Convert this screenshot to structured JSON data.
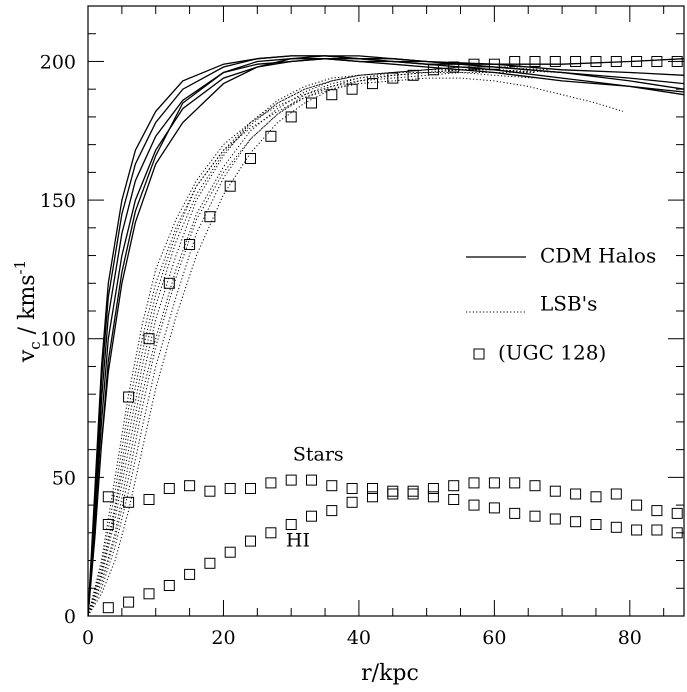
{
  "chart_data": {
    "type": "line",
    "title": "",
    "xlabel": "r/kpc",
    "ylabel_main": "v",
    "ylabel_sub": "c",
    "ylabel_rest": " / kms",
    "ylabel_sup": "-1",
    "xlim": [
      0,
      88
    ],
    "ylim": [
      0,
      220
    ],
    "xticks": [
      0,
      20,
      40,
      60,
      80
    ],
    "yticks": [
      0,
      50,
      100,
      150,
      200
    ],
    "xtick_labels": [
      "0",
      "20",
      "40",
      "60",
      "80"
    ],
    "ytick_labels": [
      "0",
      "50",
      "100",
      "150",
      "200"
    ],
    "grid": false,
    "legend_position": "right",
    "legend": [
      {
        "label": "CDM Halos",
        "style": "solid"
      },
      {
        "label": "LSB's",
        "style": "dotted"
      },
      {
        "label": "(UGC 128)",
        "style": "square-marker"
      }
    ],
    "annotations": [
      {
        "text": "Stars",
        "x": 34,
        "y": 56
      },
      {
        "text": "HI",
        "x": 31,
        "y": 25
      }
    ],
    "cdm_halos": [
      {
        "x": [
          0,
          1,
          2,
          3,
          5,
          7,
          10,
          14,
          20,
          25,
          30,
          35,
          40,
          45,
          50,
          60,
          70,
          80,
          88
        ],
        "y": [
          0,
          45,
          90,
          120,
          150,
          168,
          182,
          193,
          199,
          201,
          202,
          202,
          201,
          201,
          200,
          198,
          196,
          194,
          192
        ]
      },
      {
        "x": [
          0,
          1,
          2,
          3,
          5,
          7,
          10,
          14,
          20,
          25,
          30,
          35,
          40,
          45,
          50,
          60,
          70,
          80,
          88
        ],
        "y": [
          0,
          40,
          85,
          115,
          145,
          163,
          178,
          190,
          198,
          201,
          202,
          202,
          202,
          201,
          200,
          199,
          197,
          196,
          195
        ]
      },
      {
        "x": [
          0,
          1,
          2,
          3,
          5,
          7,
          10,
          14,
          20,
          25,
          30,
          35,
          40,
          45,
          50,
          60,
          70,
          80,
          88
        ],
        "y": [
          0,
          35,
          78,
          108,
          138,
          157,
          173,
          186,
          196,
          200,
          201,
          202,
          201,
          200,
          199,
          197,
          194,
          191,
          188
        ]
      },
      {
        "x": [
          0,
          1,
          2,
          3,
          5,
          7,
          10,
          14,
          20,
          25,
          30,
          35,
          40,
          45,
          50,
          60,
          70,
          80,
          88
        ],
        "y": [
          0,
          32,
          70,
          100,
          130,
          150,
          168,
          183,
          194,
          198,
          200,
          201,
          201,
          200,
          200,
          198,
          196,
          193,
          190
        ]
      },
      {
        "x": [
          2,
          3,
          5,
          7,
          10,
          14,
          20,
          25,
          30,
          35,
          40,
          45,
          50,
          60,
          70,
          80,
          88
        ],
        "y": [
          62,
          88,
          120,
          142,
          163,
          178,
          192,
          198,
          201,
          201,
          200,
          199,
          198,
          196,
          193,
          191,
          189
        ]
      },
      {
        "x": [
          0,
          1,
          2,
          3,
          5,
          7,
          10,
          14,
          20,
          25,
          30,
          35,
          40,
          45,
          50,
          60,
          70,
          80,
          88
        ],
        "y": [
          0,
          28,
          62,
          92,
          124,
          146,
          166,
          185,
          196,
          199,
          200,
          201,
          200,
          200,
          199,
          199,
          199,
          200,
          201
        ]
      }
    ],
    "lsb_curves": [
      {
        "x": [
          0,
          2,
          4,
          6,
          8,
          10,
          13,
          16,
          20,
          24,
          28,
          32,
          36,
          40,
          45,
          50,
          55,
          60,
          62
        ],
        "y": [
          0,
          15,
          38,
          65,
          90,
          112,
          135,
          152,
          167,
          177,
          185,
          190,
          193,
          195,
          196,
          197,
          198,
          198,
          198
        ]
      },
      {
        "x": [
          0,
          2,
          4,
          6,
          8,
          10,
          13,
          16,
          20,
          24,
          28,
          32,
          36,
          40,
          45,
          50,
          55,
          60,
          65
        ],
        "y": [
          0,
          12,
          30,
          55,
          80,
          100,
          125,
          145,
          162,
          175,
          183,
          189,
          193,
          195,
          196,
          197,
          198,
          198,
          198
        ]
      },
      {
        "x": [
          0,
          2,
          4,
          6,
          8,
          10,
          13,
          16,
          20,
          24,
          28,
          32,
          36,
          40,
          45,
          50,
          55,
          60,
          68
        ],
        "y": [
          0,
          10,
          25,
          45,
          68,
          90,
          115,
          138,
          158,
          172,
          181,
          188,
          192,
          194,
          196,
          197,
          198,
          198,
          197
        ]
      },
      {
        "x": [
          0,
          2,
          4,
          6,
          8,
          10,
          13,
          16,
          20,
          24,
          28,
          32,
          36,
          40,
          45,
          50,
          55,
          60,
          66
        ],
        "y": [
          0,
          18,
          45,
          75,
          100,
          120,
          140,
          155,
          168,
          176,
          182,
          187,
          191,
          194,
          195,
          196,
          197,
          197,
          196
        ]
      },
      {
        "x": [
          0,
          2,
          4,
          6,
          8,
          10,
          13,
          16,
          20,
          24,
          28,
          32,
          36,
          40,
          45,
          50,
          55,
          60,
          70
        ],
        "y": [
          0,
          8,
          20,
          38,
          60,
          82,
          108,
          130,
          152,
          167,
          178,
          185,
          190,
          193,
          195,
          196,
          197,
          197,
          196
        ]
      },
      {
        "x": [
          0,
          2,
          4,
          6,
          8,
          10,
          13,
          16,
          20,
          24,
          28,
          32,
          36,
          40,
          45,
          50,
          55,
          60,
          65
        ],
        "y": [
          0,
          20,
          50,
          80,
          105,
          125,
          143,
          157,
          170,
          178,
          184,
          188,
          191,
          193,
          194,
          195,
          196,
          196,
          196
        ]
      },
      {
        "x": [
          0,
          2,
          4,
          6,
          8,
          10,
          13,
          16,
          20,
          24,
          28,
          32,
          36,
          40,
          45,
          50,
          55,
          60,
          66
        ],
        "y": [
          0,
          14,
          35,
          60,
          85,
          107,
          130,
          150,
          166,
          178,
          186,
          191,
          194,
          195,
          196,
          196,
          196,
          195,
          194
        ]
      },
      {
        "x": [
          0,
          2,
          4,
          6,
          8,
          10,
          13,
          16,
          20,
          24,
          28,
          32,
          36,
          40,
          45,
          50,
          55,
          60,
          65,
          70,
          75,
          79
        ],
        "y": [
          0,
          12,
          28,
          50,
          75,
          97,
          122,
          143,
          160,
          172,
          181,
          187,
          190,
          192,
          193,
          194,
          194,
          193,
          191,
          188,
          185,
          182
        ]
      },
      {
        "x": [
          0,
          2,
          4,
          6,
          8,
          10,
          13,
          16,
          20,
          24,
          28,
          32,
          36,
          40,
          45,
          50,
          55,
          60,
          66
        ],
        "y": [
          0,
          16,
          40,
          70,
          95,
          116,
          138,
          155,
          168,
          178,
          185,
          190,
          193,
          195,
          196,
          197,
          197,
          197,
          196
        ]
      }
    ],
    "ugc128": {
      "x": [
        3,
        6,
        9,
        12,
        15,
        18,
        21,
        24,
        27,
        30,
        33,
        36,
        39,
        42,
        45,
        48,
        51,
        54,
        57,
        60,
        63,
        66,
        69,
        72,
        75,
        78,
        81,
        84,
        87
      ],
      "y": [
        43,
        79,
        100,
        120,
        134,
        144,
        155,
        165,
        173,
        180,
        185,
        188,
        190,
        192,
        194,
        195,
        197,
        198,
        199,
        199,
        200,
        200,
        200,
        200,
        200,
        200,
        200,
        200,
        200
      ]
    },
    "stars": {
      "x": [
        3,
        6,
        9,
        12,
        15,
        18,
        21,
        24,
        27,
        30,
        33,
        36,
        39,
        42,
        45,
        48,
        51,
        54,
        57,
        60,
        63,
        66,
        69,
        72,
        75,
        78,
        81,
        84,
        87
      ],
      "y": [
        33,
        41,
        42,
        46,
        47,
        45,
        46,
        46,
        48,
        49,
        49,
        47,
        46,
        46,
        45,
        45,
        46,
        47,
        48,
        48,
        48,
        47,
        45,
        44,
        43,
        44,
        40,
        38,
        37
      ]
    },
    "hi": {
      "x": [
        3,
        6,
        9,
        12,
        15,
        18,
        21,
        24,
        27,
        30,
        33,
        36,
        39,
        42,
        45,
        48,
        51,
        54,
        57,
        60,
        63,
        66,
        69,
        72,
        75,
        78,
        81,
        84,
        87
      ],
      "y": [
        3,
        5,
        8,
        11,
        15,
        19,
        23,
        27,
        30,
        33,
        36,
        38,
        41,
        43,
        44,
        44,
        43,
        42,
        40,
        39,
        37,
        36,
        35,
        34,
        33,
        32,
        31,
        31,
        30
      ]
    }
  }
}
